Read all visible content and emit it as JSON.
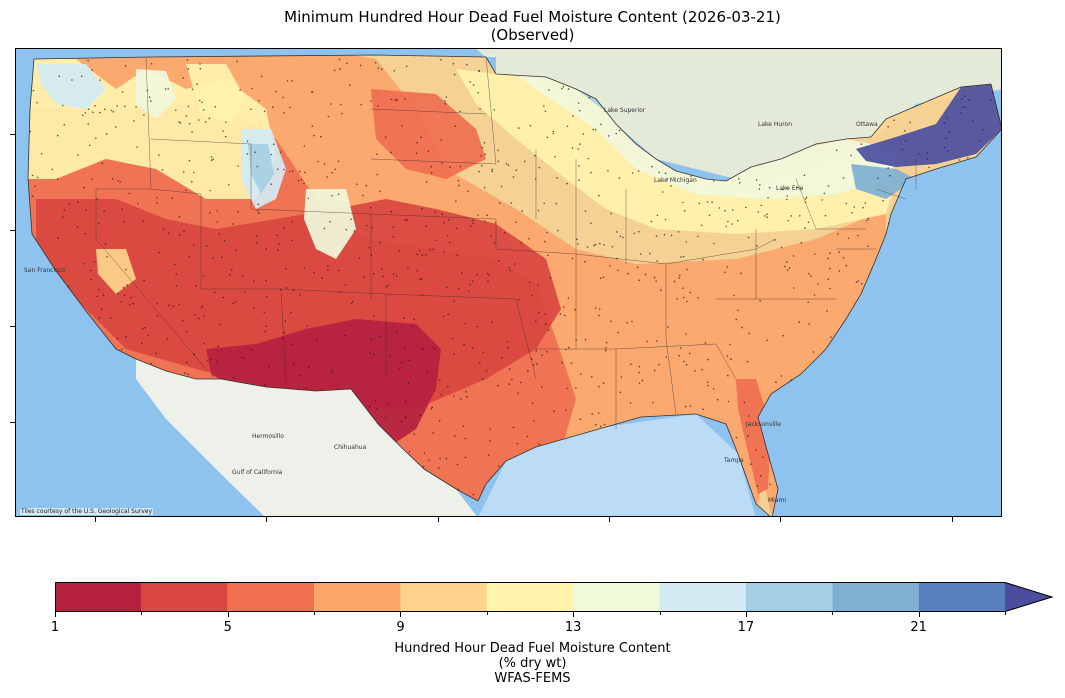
{
  "title": {
    "line1": "Minimum Hundred Hour Dead Fuel Moisture Content (2026-03-21)",
    "line2": "(Observed)"
  },
  "map": {
    "credit": "Tiles courtesy of the U.S. Geological Survey",
    "colors": {
      "ocean": "#8ec3ef",
      "land_bg": "#e4ead8",
      "gulf": "#bcdcf6"
    },
    "places": [
      {
        "name": "San Francisco"
      },
      {
        "name": "Chihuahua"
      },
      {
        "name": "Hermosillo"
      },
      {
        "name": "Gulf of California"
      },
      {
        "name": "Lake Superior"
      },
      {
        "name": "Lake Michigan"
      },
      {
        "name": "Lake Huron"
      },
      {
        "name": "Lake Erie"
      },
      {
        "name": "Ottawa"
      },
      {
        "name": "Jacksonville"
      },
      {
        "name": "Tampa"
      },
      {
        "name": "Miami"
      }
    ]
  },
  "colorbar": {
    "ticks": [
      "1",
      "5",
      "9",
      "13",
      "17",
      "21"
    ],
    "tick_values": [
      1,
      5,
      9,
      13,
      17,
      21
    ],
    "bounds": [
      1,
      3,
      5,
      7,
      9,
      11,
      13,
      15,
      17,
      19,
      21,
      23
    ],
    "extend": "max",
    "colors": [
      "#b5213f",
      "#d9463f",
      "#ef6f50",
      "#fba56a",
      "#fed48c",
      "#fff3ae",
      "#f1f9db",
      "#d3eaf3",
      "#a6cfe3",
      "#7fafd2",
      "#5b80be",
      "#4b4e9f"
    ],
    "title_line1": "Hundred Hour Dead Fuel Moisture Content",
    "title_line2": "(% dry wt)",
    "title_line3": "WFAS-FEMS"
  }
}
